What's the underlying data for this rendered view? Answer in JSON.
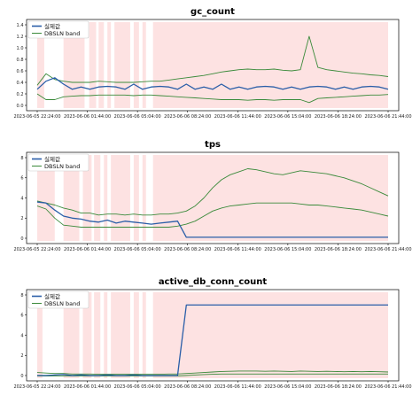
{
  "chart_data": [
    {
      "type": "line",
      "title": "gc_count",
      "xlabel": "",
      "ylabel": "",
      "ylim": [
        0,
        1.4
      ],
      "yticks": [
        0.0,
        0.2,
        0.4,
        0.6,
        0.8,
        1.0,
        1.2,
        1.4
      ],
      "ytick_labels": [
        "0.0",
        "0.2",
        "0.4",
        "0.6",
        "0.8",
        "1.0",
        "1.2",
        "1.4"
      ],
      "xtick_labels": [
        "2023-06-05 22:24:00",
        "2023-06-06 01:44:00",
        "2023-06-06 05:04:00",
        "2023-06-06 08:24:00",
        "2023-06-06 11:44:00",
        "2023-06-06 15:04:00",
        "2023-06-06 18:24:00",
        "2023-06-06 21:44:00"
      ],
      "grid": false,
      "legend": "top-left",
      "shaded_regions": "anomaly bands (light red) cover most of the time range",
      "series": [
        {
          "name": "실제값",
          "color": "#2a5ea8",
          "values": [
            0.3,
            0.4,
            0.5,
            0.35,
            0.3,
            0.3,
            0.3,
            0.3,
            0.35,
            0.3,
            0.3,
            0.35,
            0.3,
            0.3,
            0.35,
            0.3,
            0.3,
            0.35,
            0.3,
            0.3,
            0.3,
            0.35,
            0.3,
            0.3,
            0.3,
            0.3,
            0.35,
            0.3,
            0.3,
            0.3,
            0.3,
            0.3,
            0.35,
            0.3,
            0.3,
            0.3,
            0.3,
            0.3,
            0.35,
            0.3,
            0.3
          ]
        },
        {
          "name": "DBSLN band upper",
          "color": "#3a8a3a",
          "values": [
            0.35,
            0.55,
            0.45,
            0.42,
            0.4,
            0.4,
            0.4,
            0.42,
            0.41,
            0.4,
            0.4,
            0.4,
            0.41,
            0.42,
            0.42,
            0.44,
            0.46,
            0.48,
            0.5,
            0.52,
            0.55,
            0.58,
            0.6,
            0.62,
            0.63,
            0.62,
            0.62,
            0.63,
            0.61,
            0.6,
            0.62,
            1.2,
            0.66,
            0.62,
            0.6,
            0.58,
            0.56,
            0.55,
            0.53,
            0.52,
            0.5
          ]
        },
        {
          "name": "DBSLN band lower",
          "color": "#3a8a3a",
          "values": [
            0.2,
            0.1,
            0.1,
            0.15,
            0.16,
            0.17,
            0.17,
            0.18,
            0.18,
            0.18,
            0.18,
            0.17,
            0.18,
            0.18,
            0.17,
            0.16,
            0.15,
            0.14,
            0.13,
            0.12,
            0.11,
            0.1,
            0.1,
            0.1,
            0.09,
            0.1,
            0.1,
            0.09,
            0.1,
            0.1,
            0.1,
            0.05,
            0.12,
            0.13,
            0.14,
            0.15,
            0.16,
            0.17,
            0.18,
            0.18,
            0.19
          ]
        }
      ]
    },
    {
      "type": "line",
      "title": "tps",
      "xlabel": "",
      "ylabel": "",
      "ylim": [
        0,
        8
      ],
      "yticks": [
        0,
        2,
        4,
        6,
        8
      ],
      "ytick_labels": [
        "0",
        "2",
        "4",
        "6",
        "8"
      ],
      "xtick_labels": [
        "2023-06-05 22:24:00",
        "2023-06-06 01:44:00",
        "2023-06-06 05:04:00",
        "2023-06-06 08:24:00",
        "2023-06-06 11:44:00",
        "2023-06-06 15:04:00",
        "2023-06-06 18:24:00",
        "2023-06-06 21:44:00"
      ],
      "grid": false,
      "legend": "top-left",
      "shaded_regions": "anomaly bands (light red) cover most of the time range",
      "series": [
        {
          "name": "실제값",
          "color": "#2a5ea8",
          "values": [
            3.6,
            3.5,
            2.8,
            2.2,
            2.0,
            1.9,
            1.7,
            1.6,
            1.8,
            1.5,
            1.7,
            1.6,
            1.5,
            1.4,
            1.5,
            1.6,
            1.7,
            0.1,
            0.1,
            0.1,
            0.1,
            0.1,
            0.1,
            0.1,
            0.1,
            0.1,
            0.1,
            0.1,
            0.1,
            0.1,
            0.1,
            0.1,
            0.1,
            0.1,
            0.1,
            0.1,
            0.1,
            0.1,
            0.1,
            0.1,
            0.1
          ]
        },
        {
          "name": "DBSLN band upper",
          "color": "#3a8a3a",
          "values": [
            3.7,
            3.5,
            3.3,
            3.0,
            2.8,
            2.5,
            2.5,
            2.3,
            2.4,
            2.4,
            2.3,
            2.4,
            2.3,
            2.3,
            2.4,
            2.4,
            2.5,
            2.7,
            3.2,
            4.0,
            5.0,
            5.8,
            6.3,
            6.6,
            6.9,
            6.8,
            6.6,
            6.4,
            6.3,
            6.5,
            6.7,
            6.6,
            6.5,
            6.4,
            6.2,
            6.0,
            5.7,
            5.4,
            5.0,
            4.6,
            4.2
          ]
        },
        {
          "name": "DBSLN band lower",
          "color": "#3a8a3a",
          "values": [
            3.2,
            2.9,
            2.0,
            1.3,
            1.2,
            1.1,
            1.1,
            1.1,
            1.1,
            1.1,
            1.1,
            1.1,
            1.1,
            1.1,
            1.1,
            1.1,
            1.2,
            1.4,
            1.7,
            2.2,
            2.7,
            3.0,
            3.2,
            3.3,
            3.4,
            3.5,
            3.5,
            3.5,
            3.5,
            3.5,
            3.4,
            3.3,
            3.3,
            3.2,
            3.1,
            3.0,
            2.9,
            2.8,
            2.6,
            2.4,
            2.2
          ]
        }
      ]
    },
    {
      "type": "line",
      "title": "active_db_conn_count",
      "xlabel": "",
      "ylabel": "",
      "ylim": [
        0,
        8
      ],
      "yticks": [
        0,
        2,
        4,
        6,
        8
      ],
      "ytick_labels": [
        "0",
        "2",
        "4",
        "6",
        "8"
      ],
      "xtick_labels": [
        "2023-06-05 22:24:00",
        "2023-06-06 01:44:00",
        "2023-06-06 05:04:00",
        "2023-06-06 08:24:00",
        "2023-06-06 11:44:00",
        "2023-06-06 15:04:00",
        "2023-06-06 18:24:00",
        "2023-06-06 21:44:00"
      ],
      "grid": false,
      "legend": "top-left",
      "shaded_regions": "anomaly bands (light red) cover most of the time range",
      "series": [
        {
          "name": "실제값",
          "color": "#2a5ea8",
          "values": [
            0.0,
            0.0,
            0.05,
            0.1,
            0.0,
            0.05,
            0.0,
            0.0,
            0.05,
            0.0,
            0.0,
            0.05,
            0.0,
            0.0,
            0.0,
            0.0,
            0.0,
            7.0,
            7.0,
            7.0,
            7.0,
            7.0,
            7.0,
            7.0,
            7.0,
            7.0,
            7.0,
            7.0,
            7.0,
            7.0,
            7.0,
            7.0,
            7.0,
            7.0,
            7.0,
            7.0,
            7.0,
            7.0,
            7.0,
            7.0,
            7.0
          ]
        },
        {
          "name": "DBSLN band upper",
          "color": "#3a8a3a",
          "values": [
            0.3,
            0.25,
            0.2,
            0.2,
            0.15,
            0.15,
            0.15,
            0.12,
            0.12,
            0.12,
            0.12,
            0.12,
            0.12,
            0.12,
            0.12,
            0.15,
            0.15,
            0.2,
            0.25,
            0.3,
            0.35,
            0.4,
            0.42,
            0.45,
            0.45,
            0.45,
            0.42,
            0.45,
            0.42,
            0.4,
            0.45,
            0.42,
            0.4,
            0.42,
            0.4,
            0.38,
            0.4,
            0.38,
            0.4,
            0.38,
            0.35
          ]
        },
        {
          "name": "DBSLN band lower",
          "color": "#3a8a3a",
          "values": [
            -0.05,
            -0.05,
            -0.05,
            -0.05,
            -0.05,
            -0.05,
            -0.05,
            -0.05,
            -0.05,
            -0.05,
            -0.05,
            -0.05,
            -0.05,
            -0.05,
            -0.05,
            -0.05,
            -0.05,
            0.0,
            0.05,
            0.1,
            0.12,
            0.15,
            0.15,
            0.15,
            0.15,
            0.15,
            0.15,
            0.15,
            0.15,
            0.15,
            0.15,
            0.15,
            0.15,
            0.15,
            0.15,
            0.15,
            0.15,
            0.15,
            0.15,
            0.15,
            0.15
          ]
        }
      ]
    }
  ],
  "legend_labels": {
    "actual": "실제값",
    "band": "DBSLN band"
  },
  "colors": {
    "actual": "#2a5ea8",
    "band": "#3a8a3a",
    "shade": "#fde2e2"
  }
}
